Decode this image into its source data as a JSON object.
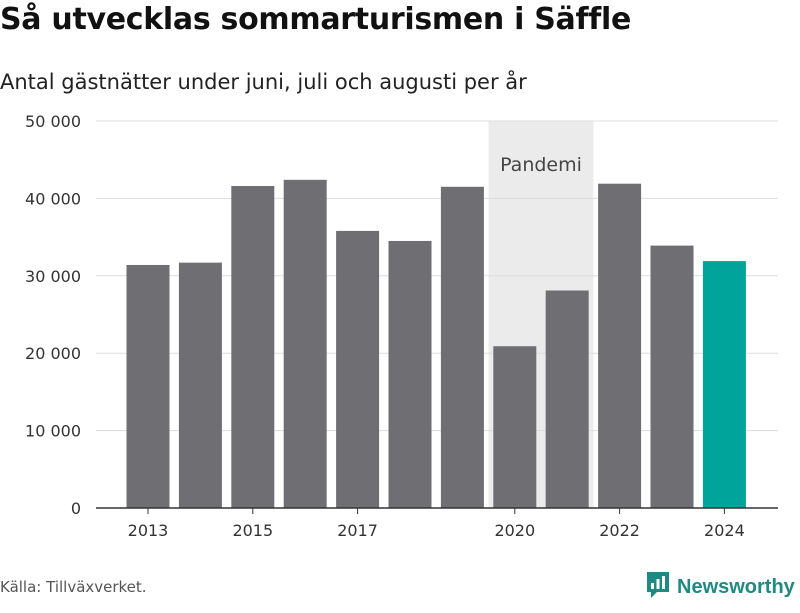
{
  "title": "Så utvecklas sommarturismen i Säffle",
  "subtitle": "Antal gästnätter under juni, juli och augusti per år",
  "source": "Källa: Tillväxverket.",
  "brand": {
    "name": "Newsworthy",
    "logo_icon": "newsworthy-chart-logo-icon"
  },
  "colors": {
    "bar": "#6f6e73",
    "highlight": "#00a49a",
    "band": "#ebebeb",
    "brand": "#1f8a83"
  },
  "chart_data": {
    "type": "bar",
    "categories": [
      "2013",
      "2014",
      "2015",
      "2016",
      "2017",
      "2018",
      "2019",
      "2020",
      "2021",
      "2022",
      "2023",
      "2024"
    ],
    "values": [
      31400,
      31700,
      41600,
      42400,
      35800,
      34500,
      41500,
      20900,
      28100,
      41900,
      33900,
      31900
    ],
    "highlight_category": "2024",
    "xticks": [
      "2013",
      "2015",
      "2017",
      "2020",
      "2022",
      "2024"
    ],
    "yticks": [
      0,
      10000,
      20000,
      30000,
      40000,
      50000
    ],
    "ytick_labels": [
      "0",
      "10 000",
      "20 000",
      "30 000",
      "40 000",
      "50 000"
    ],
    "ylim": [
      0,
      50000
    ],
    "grid": true,
    "annotation": {
      "label": "Pandemi",
      "from": "2020",
      "to": "2021"
    }
  }
}
